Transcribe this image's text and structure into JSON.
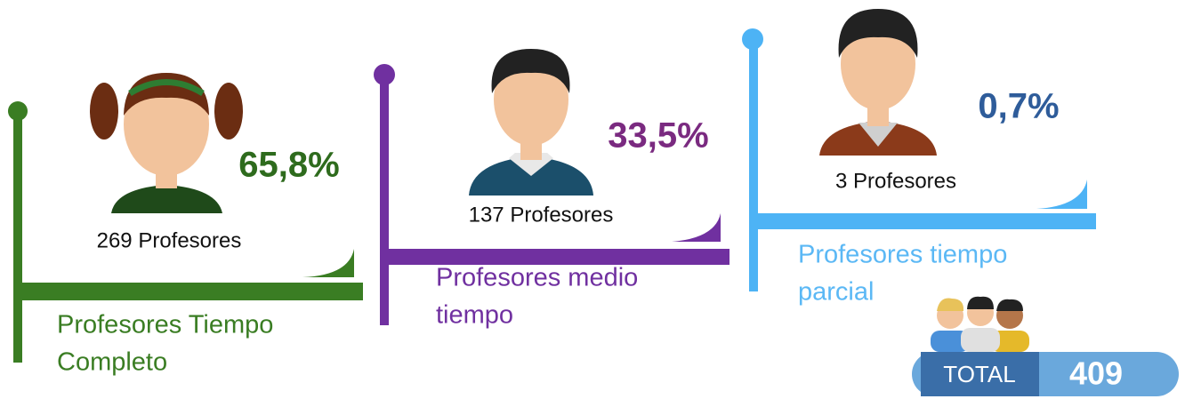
{
  "groups": [
    {
      "percent": "65,8%",
      "count": "269 Profesores",
      "label_lines": [
        "Profesores Tiempo",
        "Completo"
      ]
    },
    {
      "percent": "33,5%",
      "count": "137 Profesores",
      "label_lines": [
        "Profesores medio",
        "tiempo"
      ]
    },
    {
      "percent": "0,7%",
      "count": "3 Profesores",
      "label_lines": [
        "Profesores tiempo",
        "parcial"
      ]
    }
  ],
  "total": {
    "label": "TOTAL",
    "value": "409"
  }
}
